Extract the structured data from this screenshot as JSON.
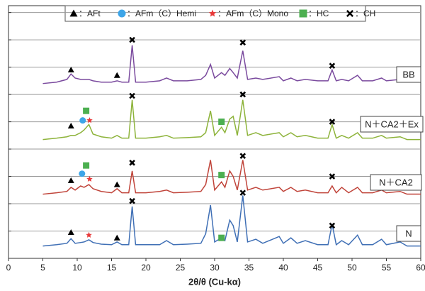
{
  "chart_data": {
    "type": "line",
    "xlabel": "2θ/θ (Cu-kα)",
    "x": [
      5,
      7,
      8.5,
      9.1,
      9.7,
      10.5,
      11.0,
      11.7,
      12.3,
      13.5,
      15.0,
      15.8,
      16.5,
      17.5,
      18.0,
      18.5,
      20,
      22,
      23,
      24,
      26,
      28,
      28.7,
      29.4,
      30,
      31,
      31.5,
      32.2,
      32.7,
      33.3,
      34.1,
      34.8,
      36,
      37,
      39.4,
      40,
      41.1,
      42,
      43.2,
      45,
      46.5,
      47.1,
      47.7,
      48.5,
      49.5,
      50.8,
      51.5,
      53,
      54.3,
      55,
      57,
      58,
      60
    ],
    "series": [
      {
        "name": "N",
        "color": "#3f6fb5",
        "values": [
          0.45,
          0.5,
          0.55,
          0.72,
          0.55,
          0.58,
          0.6,
          0.68,
          0.58,
          0.52,
          0.5,
          0.6,
          0.5,
          0.5,
          1.9,
          0.5,
          0.5,
          0.5,
          0.65,
          0.5,
          0.52,
          0.55,
          0.9,
          1.95,
          0.6,
          0.75,
          0.65,
          1.4,
          1.2,
          0.6,
          2.3,
          0.6,
          0.7,
          0.55,
          0.8,
          0.55,
          0.75,
          0.55,
          0.65,
          0.5,
          0.5,
          1.25,
          0.5,
          0.65,
          0.5,
          0.85,
          0.5,
          0.5,
          0.7,
          0.5,
          0.6,
          0.45,
          0.45
        ]
      },
      {
        "name": "N＋CA2",
        "color": "#c0443a",
        "values": [
          2.35,
          2.4,
          2.45,
          2.6,
          2.5,
          2.65,
          2.6,
          2.7,
          2.55,
          2.45,
          2.4,
          2.55,
          2.4,
          2.4,
          3.2,
          2.4,
          2.4,
          2.45,
          2.5,
          2.4,
          2.42,
          2.45,
          2.7,
          3.6,
          2.5,
          2.8,
          2.6,
          3.2,
          3.0,
          2.5,
          3.6,
          2.5,
          2.6,
          2.5,
          2.6,
          2.45,
          2.6,
          2.45,
          2.5,
          2.4,
          2.4,
          2.65,
          2.4,
          2.6,
          2.4,
          2.6,
          2.4,
          2.4,
          2.5,
          2.4,
          2.45,
          2.35,
          2.35
        ]
      },
      {
        "name": "N＋CA2＋Ex",
        "color": "#8db33a",
        "values": [
          4.35,
          4.4,
          4.45,
          4.5,
          4.5,
          4.6,
          4.7,
          4.9,
          4.55,
          4.45,
          4.4,
          4.5,
          4.4,
          4.4,
          5.8,
          4.4,
          4.4,
          4.45,
          4.5,
          4.4,
          4.42,
          4.45,
          4.6,
          5.4,
          4.5,
          4.8,
          4.6,
          5.1,
          5.2,
          4.5,
          5.8,
          4.5,
          4.6,
          4.5,
          4.6,
          4.45,
          4.6,
          4.45,
          4.5,
          4.4,
          4.4,
          4.9,
          4.4,
          4.5,
          4.4,
          4.6,
          4.4,
          4.4,
          4.5,
          4.4,
          4.45,
          4.35,
          4.35
        ]
      },
      {
        "name": "BB",
        "color": "#7a4a9e",
        "values": [
          6.4,
          6.45,
          6.55,
          6.75,
          6.6,
          6.55,
          6.55,
          6.55,
          6.5,
          6.45,
          6.45,
          6.5,
          6.45,
          6.45,
          7.8,
          6.45,
          6.45,
          6.5,
          6.6,
          6.5,
          6.5,
          6.55,
          6.7,
          7.1,
          6.6,
          6.8,
          6.7,
          6.95,
          6.8,
          6.6,
          7.6,
          6.55,
          6.6,
          6.55,
          6.65,
          6.5,
          6.6,
          6.5,
          6.55,
          6.5,
          6.5,
          6.9,
          6.5,
          6.55,
          6.5,
          6.7,
          6.5,
          6.5,
          6.6,
          6.5,
          6.55,
          6.45,
          6.45
        ]
      }
    ],
    "xlim": [
      0,
      60
    ],
    "xticks": [
      0,
      5,
      10,
      15,
      20,
      25,
      30,
      35,
      40,
      45,
      50,
      55,
      60
    ],
    "ylim": [
      0,
      9.25
    ],
    "yticks": [
      1,
      2,
      3,
      4,
      5,
      6,
      7,
      8,
      9
    ],
    "grid": true,
    "phases": [
      {
        "label": "：AFt",
        "symbol": "triangle",
        "color": "#000000"
      },
      {
        "label": "：AFm（C）Hemi",
        "symbol": "circle",
        "color": "#3da5e8"
      },
      {
        "label": "：AFm（C）Mono",
        "symbol": "star",
        "color": "#e8393a"
      },
      {
        "label": "：HC",
        "symbol": "square",
        "color": "#4caf50"
      },
      {
        "label": "：CH",
        "symbol": "cross",
        "color": "#000000"
      }
    ],
    "annotations": [
      {
        "phase": 0,
        "x": 9.1,
        "y": 6.9
      },
      {
        "phase": 0,
        "x": 15.8,
        "y": 6.7
      },
      {
        "phase": 4,
        "x": 18,
        "y": 8.0
      },
      {
        "phase": 4,
        "x": 34.1,
        "y": 7.9
      },
      {
        "phase": 4,
        "x": 47.1,
        "y": 7.05
      },
      {
        "phase": 0,
        "x": 9.1,
        "y": 4.85
      },
      {
        "phase": 1,
        "x": 10.8,
        "y": 5.05
      },
      {
        "phase": 3,
        "x": 11.3,
        "y": 5.4
      },
      {
        "phase": 2,
        "x": 11.8,
        "y": 5.05
      },
      {
        "phase": 4,
        "x": 18,
        "y": 5.95
      },
      {
        "phase": 3,
        "x": 31,
        "y": 5.0
      },
      {
        "phase": 4,
        "x": 34.1,
        "y": 6.0
      },
      {
        "phase": 4,
        "x": 47.1,
        "y": 5.0
      },
      {
        "phase": 0,
        "x": 9.1,
        "y": 2.85
      },
      {
        "phase": 1,
        "x": 10.7,
        "y": 3.1
      },
      {
        "phase": 3,
        "x": 11.3,
        "y": 3.4
      },
      {
        "phase": 2,
        "x": 11.8,
        "y": 2.9
      },
      {
        "phase": 0,
        "x": 15.8,
        "y": 2.7
      },
      {
        "phase": 4,
        "x": 18,
        "y": 3.5
      },
      {
        "phase": 3,
        "x": 31,
        "y": 3.05
      },
      {
        "phase": 4,
        "x": 34.1,
        "y": 3.75
      },
      {
        "phase": 4,
        "x": 47.1,
        "y": 3.0
      },
      {
        "phase": 0,
        "x": 9.1,
        "y": 0.95
      },
      {
        "phase": 2,
        "x": 11.7,
        "y": 0.85
      },
      {
        "phase": 0,
        "x": 15.8,
        "y": 0.75
      },
      {
        "phase": 4,
        "x": 18,
        "y": 2.1
      },
      {
        "phase": 3,
        "x": 31,
        "y": 0.75
      },
      {
        "phase": 4,
        "x": 34.1,
        "y": 2.4
      },
      {
        "phase": 4,
        "x": 47.1,
        "y": 1.2
      }
    ]
  }
}
